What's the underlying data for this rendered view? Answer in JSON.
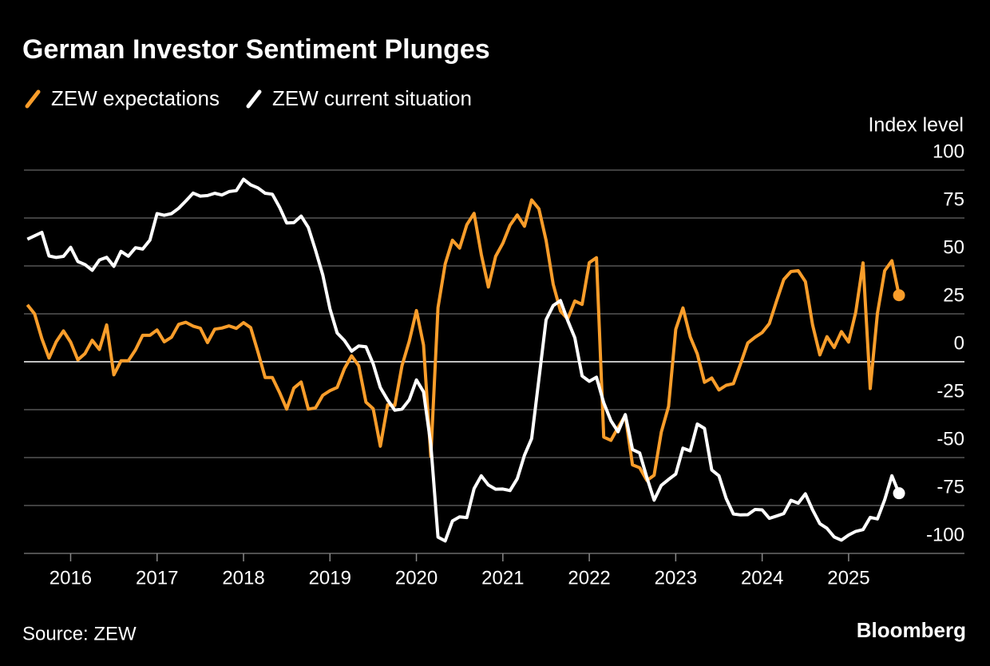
{
  "chart_data": {
    "type": "line",
    "title": "German Investor Sentiment Plunges",
    "y_label": "Index level",
    "source": "Source: ZEW",
    "brand": "Bloomberg",
    "x": [
      2015.5,
      2015.583,
      2015.667,
      2015.75,
      2015.833,
      2015.917,
      2016,
      2016.083,
      2016.167,
      2016.25,
      2016.333,
      2016.417,
      2016.5,
      2016.583,
      2016.667,
      2016.75,
      2016.833,
      2016.917,
      2017,
      2017.083,
      2017.167,
      2017.25,
      2017.333,
      2017.417,
      2017.5,
      2017.583,
      2017.667,
      2017.75,
      2017.833,
      2017.917,
      2018,
      2018.083,
      2018.167,
      2018.25,
      2018.333,
      2018.417,
      2018.5,
      2018.583,
      2018.667,
      2018.75,
      2018.833,
      2018.917,
      2019,
      2019.083,
      2019.167,
      2019.25,
      2019.333,
      2019.417,
      2019.5,
      2019.583,
      2019.667,
      2019.75,
      2019.833,
      2019.917,
      2020,
      2020.083,
      2020.167,
      2020.25,
      2020.333,
      2020.417,
      2020.5,
      2020.583,
      2020.667,
      2020.75,
      2020.833,
      2020.917,
      2021,
      2021.083,
      2021.167,
      2021.25,
      2021.333,
      2021.417,
      2021.5,
      2021.583,
      2021.667,
      2021.75,
      2021.833,
      2021.917,
      2022,
      2022.083,
      2022.167,
      2022.25,
      2022.333,
      2022.417,
      2022.5,
      2022.583,
      2022.667,
      2022.75,
      2022.833,
      2022.917,
      2023,
      2023.083,
      2023.167,
      2023.25,
      2023.333,
      2023.417,
      2023.5,
      2023.583,
      2023.667,
      2023.75,
      2023.833,
      2023.917,
      2024,
      2024.083,
      2024.167,
      2024.25,
      2024.333,
      2024.417,
      2024.5,
      2024.583,
      2024.667,
      2024.75,
      2024.833,
      2024.917,
      2025,
      2025.083,
      2025.167,
      2025.25,
      2025.333,
      2025.417,
      2025.5,
      2025.583
    ],
    "series": [
      {
        "name": "ZEW expectations",
        "color": "#f99d2a",
        "values": [
          29.7,
          25.0,
          12.1,
          1.9,
          10.4,
          16.1,
          10.2,
          1.0,
          4.3,
          11.2,
          6.4,
          19.2,
          -6.8,
          0.5,
          0.5,
          6.2,
          13.8,
          13.8,
          16.6,
          10.4,
          12.8,
          19.5,
          20.6,
          18.6,
          17.5,
          10.0,
          17.0,
          17.6,
          18.7,
          17.4,
          20.4,
          17.8,
          5.1,
          -8.2,
          -8.2,
          -16.1,
          -24.7,
          -13.7,
          -10.6,
          -24.7,
          -24.1,
          -17.5,
          -15.1,
          -13.4,
          -3.6,
          3.1,
          -2.1,
          -21.1,
          -24.5,
          -44.1,
          -22.5,
          -22.8,
          -2.1,
          10.7,
          26.7,
          8.7,
          -49.5,
          28.2,
          51.0,
          63.4,
          59.3,
          71.5,
          77.4,
          56.1,
          39.0,
          55.0,
          61.8,
          71.2,
          76.6,
          70.7,
          84.4,
          79.8,
          63.3,
          40.4,
          26.5,
          22.3,
          31.7,
          29.9,
          51.7,
          54.3,
          -39.3,
          -41.0,
          -34.3,
          -28.0,
          -53.8,
          -55.3,
          -61.9,
          -59.2,
          -36.7,
          -23.3,
          16.9,
          28.1,
          13.0,
          4.1,
          -10.7,
          -8.5,
          -14.7,
          -12.3,
          -11.4,
          -1.1,
          9.8,
          12.8,
          15.2,
          19.9,
          31.7,
          42.9,
          47.1,
          47.5,
          41.8,
          19.2,
          3.6,
          13.1,
          7.4,
          15.7,
          10.3,
          26.0,
          51.6,
          -14.0,
          25.2,
          47.5,
          52.7,
          34.7
        ]
      },
      {
        "name": "ZEW current situation",
        "color": "#ffffff",
        "values": [
          63.9,
          65.7,
          67.5,
          55.2,
          54.4,
          55.0,
          59.7,
          52.3,
          50.7,
          47.7,
          53.1,
          54.5,
          49.8,
          57.6,
          55.1,
          59.5,
          58.8,
          63.5,
          77.3,
          76.4,
          77.3,
          80.1,
          83.9,
          88.0,
          86.4,
          86.7,
          87.9,
          87.0,
          88.8,
          89.3,
          95.2,
          92.3,
          90.7,
          87.9,
          87.4,
          80.6,
          72.4,
          72.6,
          76.0,
          70.1,
          58.2,
          45.3,
          27.6,
          15.0,
          11.1,
          5.5,
          8.2,
          7.8,
          -1.1,
          -13.5,
          -19.9,
          -25.3,
          -24.7,
          -19.9,
          -9.5,
          -15.7,
          -43.1,
          -91.5,
          -93.5,
          -83.1,
          -80.9,
          -81.3,
          -66.2,
          -59.5,
          -64.3,
          -66.5,
          -66.4,
          -67.2,
          -61.0,
          -48.8,
          -40.1,
          -9.1,
          21.9,
          29.3,
          31.9,
          21.6,
          12.5,
          -7.4,
          -10.2,
          -8.1,
          -21.4,
          -30.8,
          -36.5,
          -27.6,
          -45.8,
          -47.6,
          -60.5,
          -72.2,
          -64.5,
          -61.4,
          -58.6,
          -45.1,
          -46.5,
          -32.5,
          -34.8,
          -56.5,
          -59.5,
          -71.3,
          -79.4,
          -79.9,
          -79.8,
          -77.1,
          -77.3,
          -81.7,
          -80.5,
          -79.2,
          -72.3,
          -73.8,
          -68.9,
          -77.3,
          -84.5,
          -86.9,
          -91.4,
          -93.1,
          -90.4,
          -88.5,
          -87.6,
          -81.2,
          -82.0,
          -72.0,
          -59.5,
          -68.6
        ]
      }
    ],
    "xlim": [
      2015.46,
      2026.34
    ],
    "xticks": [
      2016,
      2017,
      2018,
      2019,
      2020,
      2021,
      2022,
      2023,
      2024,
      2025
    ],
    "ylim": [
      -100,
      100
    ],
    "yticks": [
      100,
      75,
      50,
      25,
      0,
      -25,
      -50,
      -75,
      -100
    ],
    "grid": true
  }
}
